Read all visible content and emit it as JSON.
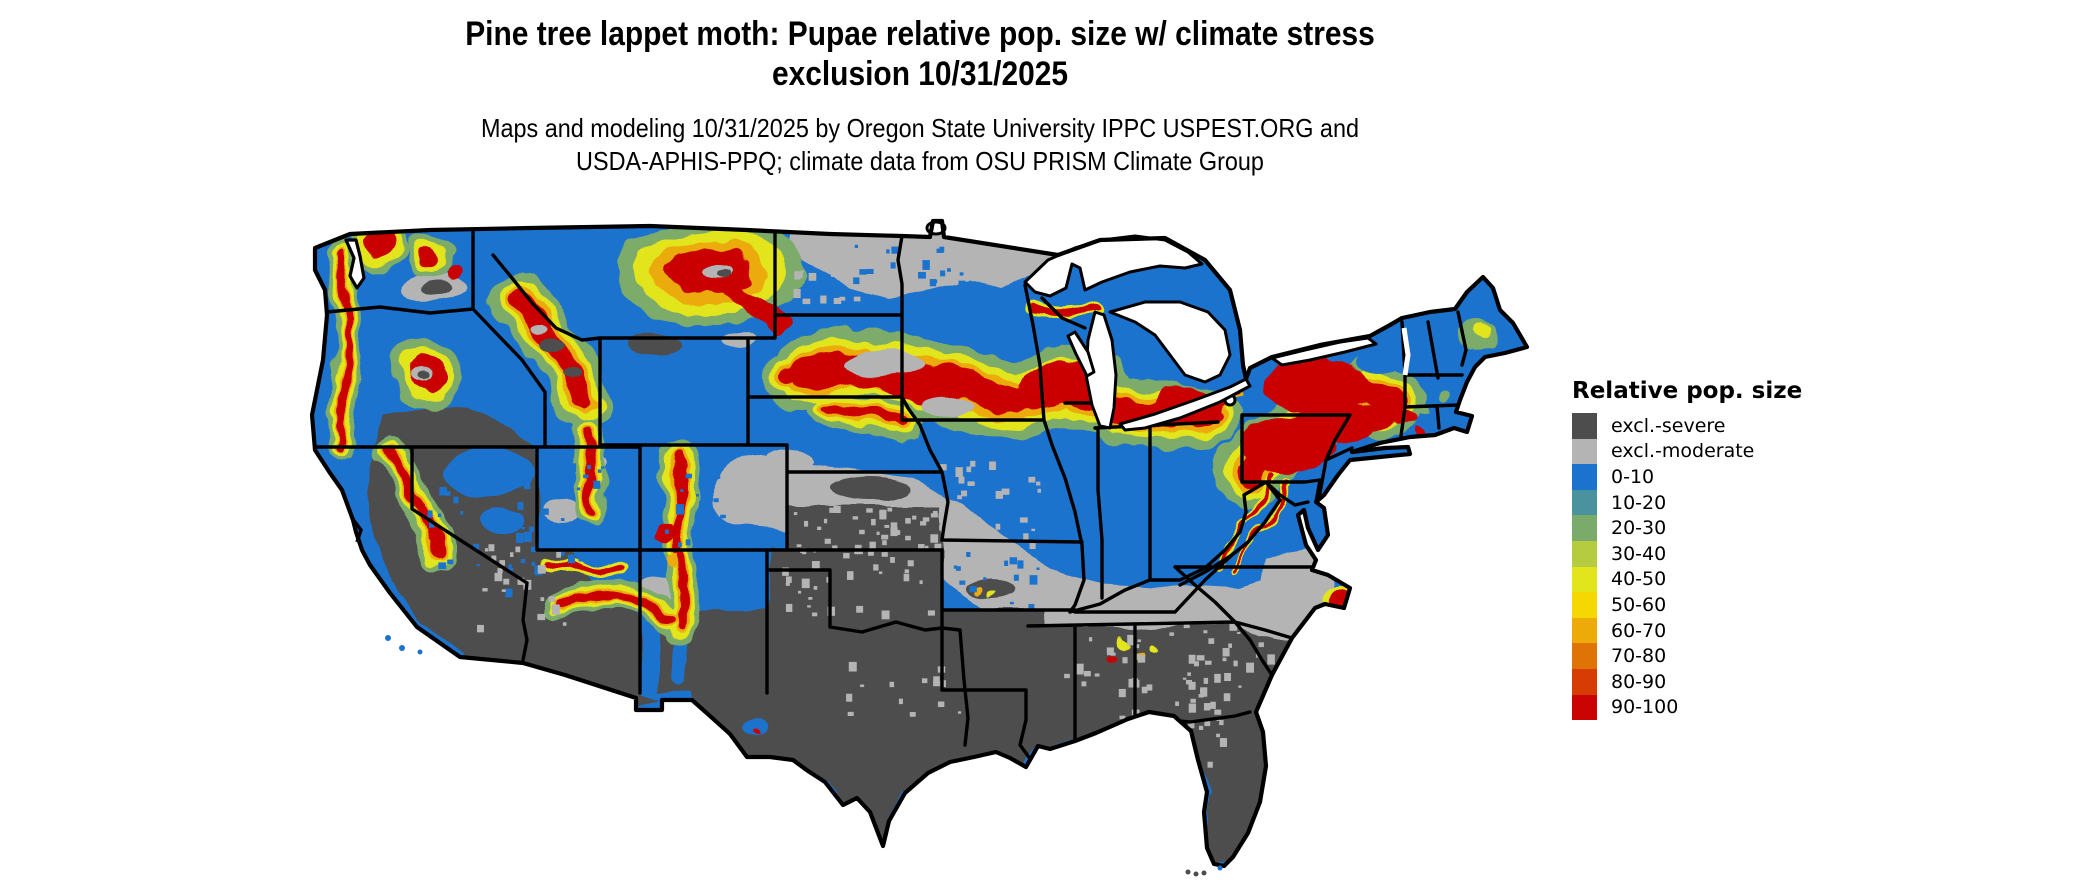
{
  "title": {
    "line1": "Pine tree lappet moth: Pupae relative pop. size w/ climate stress",
    "line2": "exclusion 10/31/2025"
  },
  "subtitle": {
    "line1": "Maps and modeling 10/31/2025 by Oregon State University IPPC USPEST.ORG and",
    "line2": "USDA-APHIS-PPQ; climate data from OSU PRISM Climate Group"
  },
  "legend": {
    "title": "Relative pop. size",
    "items": [
      {
        "label": "excl.-severe",
        "key": "severe",
        "color": "#4d4d4d"
      },
      {
        "label": "excl.-moderate",
        "key": "moderate",
        "color": "#b4b4b4"
      },
      {
        "label": "0-10",
        "key": "v0",
        "color": "#1c73ce"
      },
      {
        "label": "10-20",
        "key": "v10",
        "color": "#4a939e"
      },
      {
        "label": "20-30",
        "key": "v20",
        "color": "#7bab6a"
      },
      {
        "label": "30-40",
        "key": "v30",
        "color": "#b5cc41"
      },
      {
        "label": "40-50",
        "key": "v40",
        "color": "#e2e51c"
      },
      {
        "label": "50-60",
        "key": "v50",
        "color": "#f5d801"
      },
      {
        "label": "60-70",
        "key": "v60",
        "color": "#ecab08"
      },
      {
        "label": "70-80",
        "key": "v70",
        "color": "#df7306"
      },
      {
        "label": "80-90",
        "key": "v80",
        "color": "#d73c05"
      },
      {
        "label": "90-100",
        "key": "v90",
        "color": "#ca0303"
      }
    ]
  },
  "map": {
    "region": "Continental United States",
    "date_shown": "10/31/2025",
    "outline_color": "#000000",
    "water_color": "#ffffff",
    "pattern_summary": [
      {
        "area": "Southern US (TX, Gulf states, FL, GA)",
        "class": "excl.-severe"
      },
      {
        "area": "Central transition band (KS, MO, TN, Carolinas) and northern MN/ND",
        "class": "excl.-moderate"
      },
      {
        "area": "Northern plains band (SD, NE, IA, s. MN, WI, s. MI, PA, NY)",
        "class": "90-100"
      },
      {
        "area": "Western mountain ranges (Cascades, Sierra, Rockies, Wasatch, Mogollon)",
        "class": "60-100"
      },
      {
        "area": "Remaining northern US and coastal West",
        "class": "0-10"
      }
    ]
  }
}
